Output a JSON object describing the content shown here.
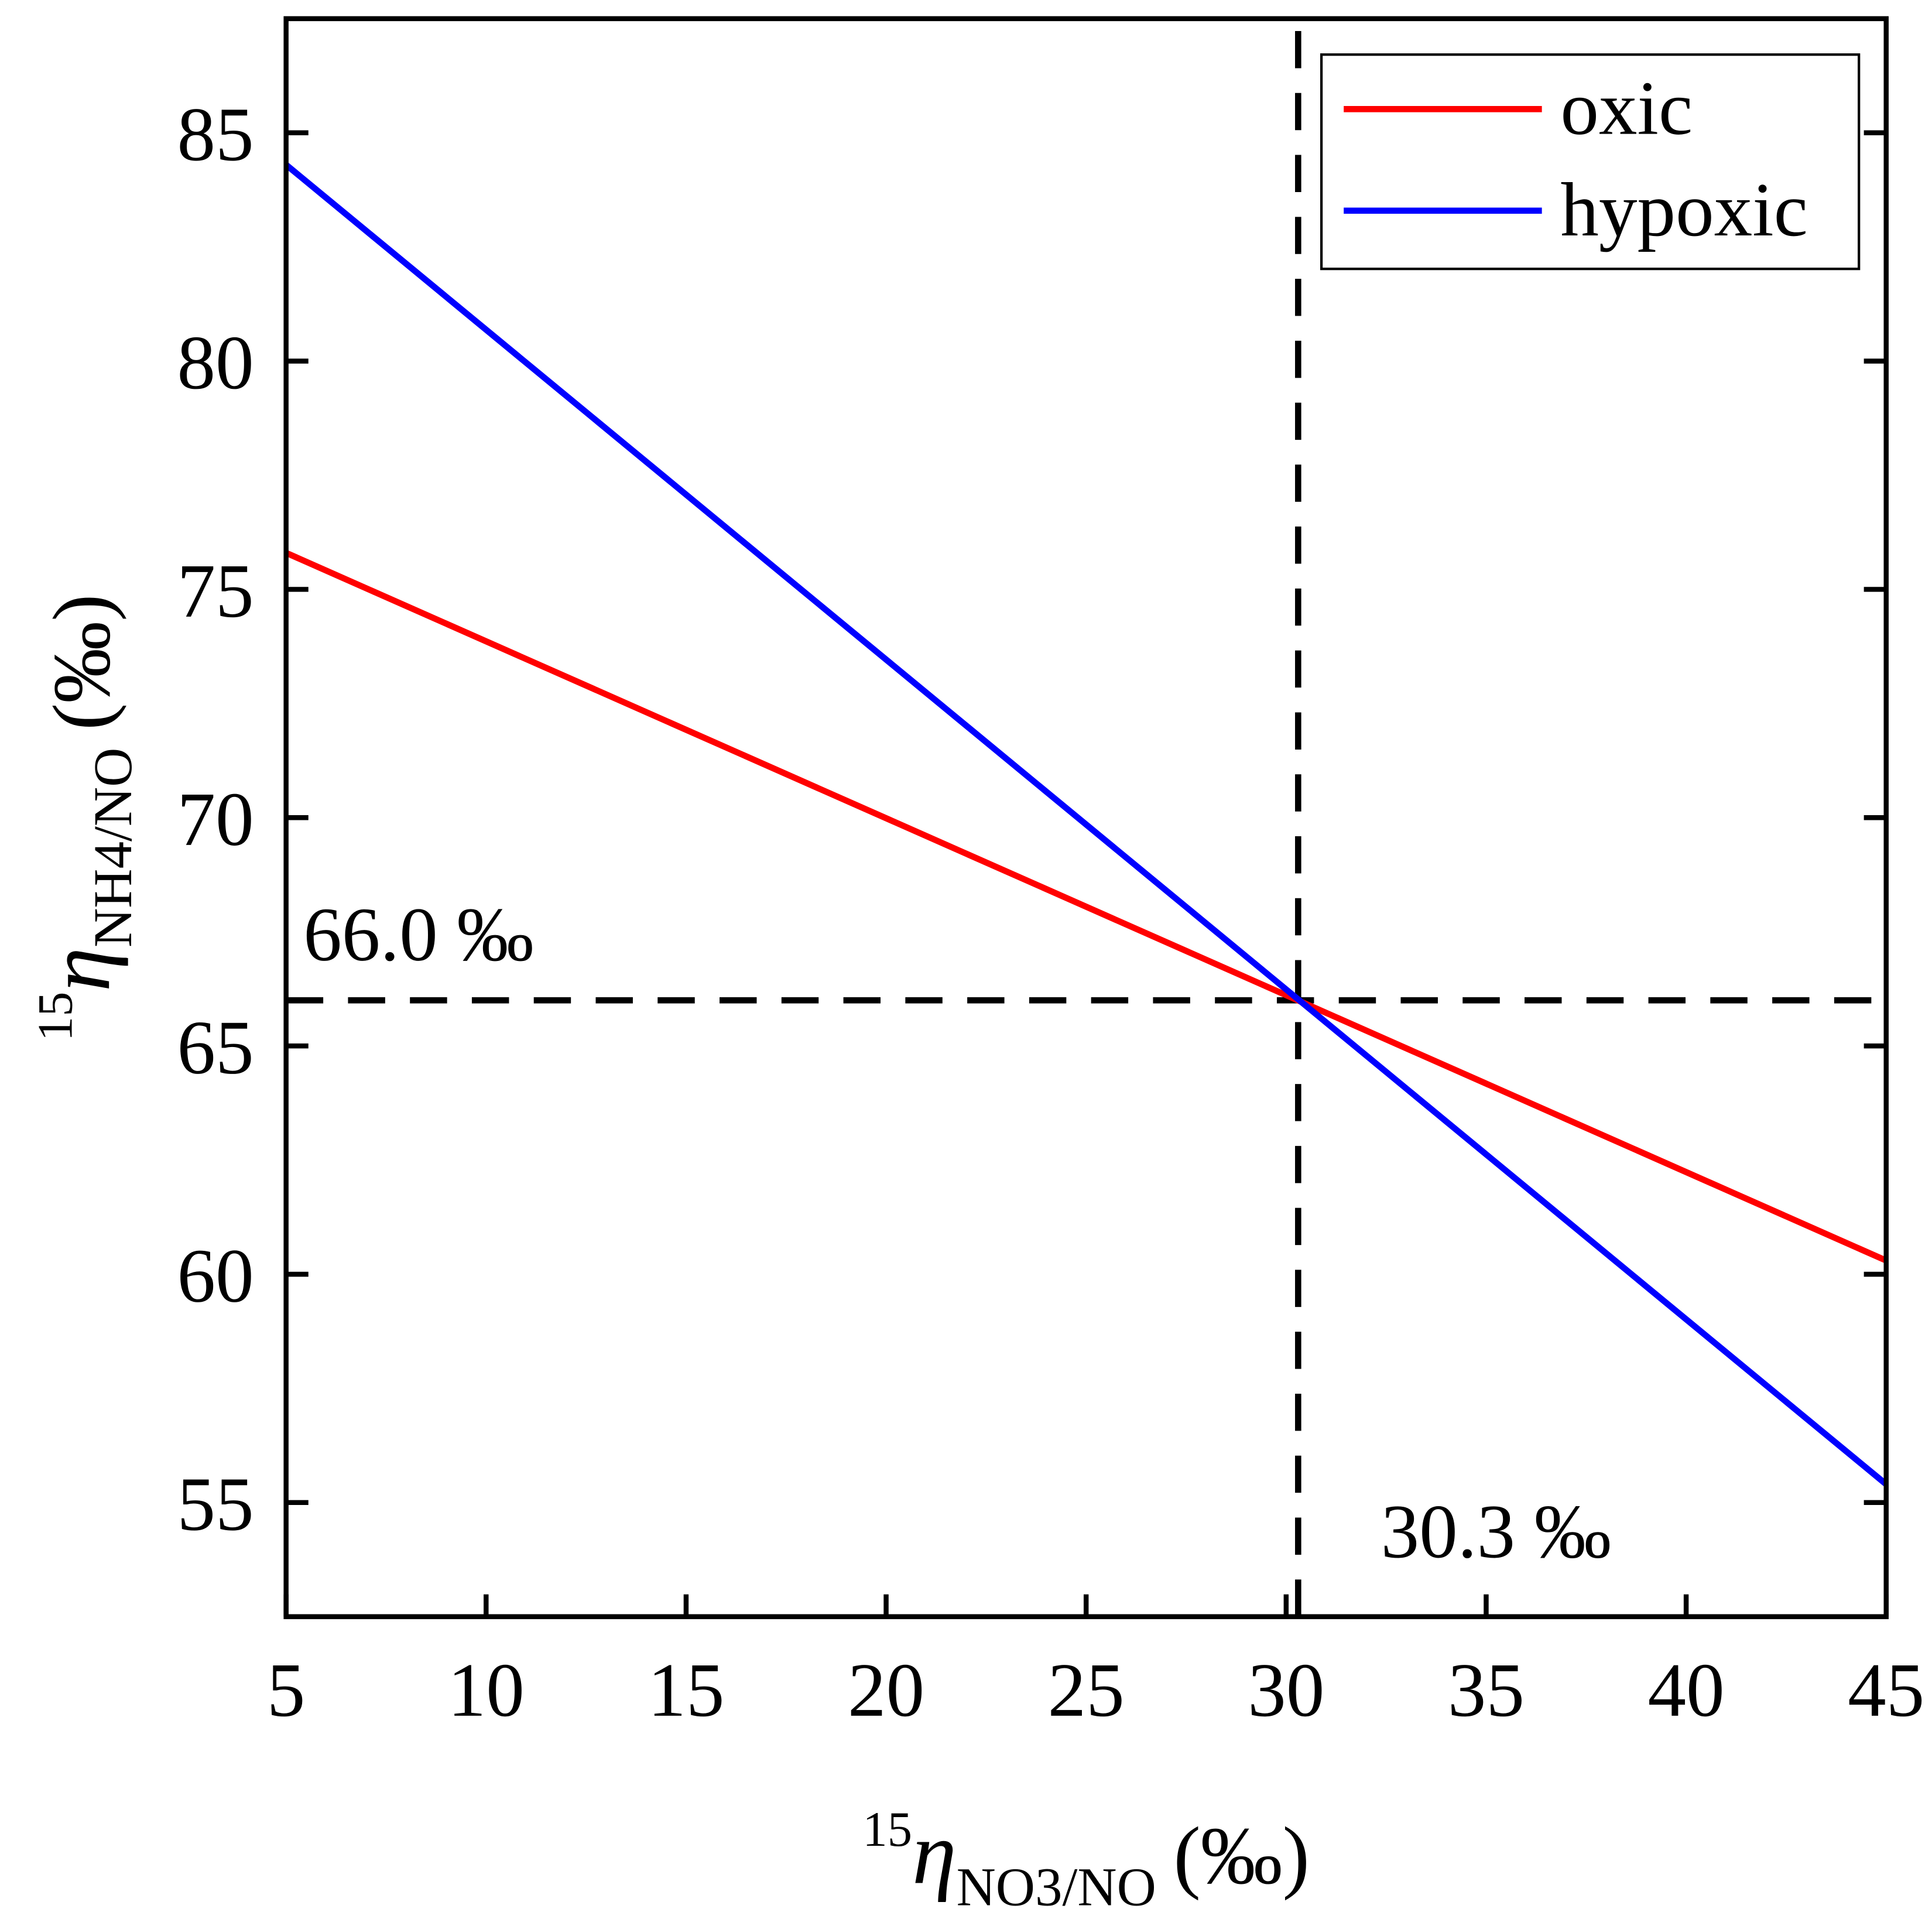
{
  "chart_data": {
    "type": "line",
    "x": [
      5,
      45
    ],
    "series": [
      {
        "name": "oxic",
        "color": "#ff0000",
        "values": [
          75.8,
          60.3
        ]
      },
      {
        "name": "hypoxic",
        "color": "#0000ff",
        "values": [
          84.3,
          55.4
        ]
      }
    ],
    "xlim": [
      5,
      45
    ],
    "ylim": [
      52.5,
      87.5
    ],
    "xticks": [
      5,
      10,
      15,
      20,
      25,
      30,
      35,
      40,
      45
    ],
    "yticks": [
      55,
      60,
      65,
      70,
      75,
      80,
      85
    ],
    "xlabel": {
      "sup": "15",
      "symbol": "η",
      "sub": "NO3/NO",
      "unit": "(‰)"
    },
    "ylabel": {
      "sup": "15",
      "symbol": "η",
      "sub": "NH4/NO",
      "unit": "(‰)"
    },
    "hlines": [
      66.0
    ],
    "vlines": [
      30.3
    ],
    "annotations": [
      "66.0 ‰",
      "30.3 ‰"
    ],
    "legend": "upper right"
  }
}
